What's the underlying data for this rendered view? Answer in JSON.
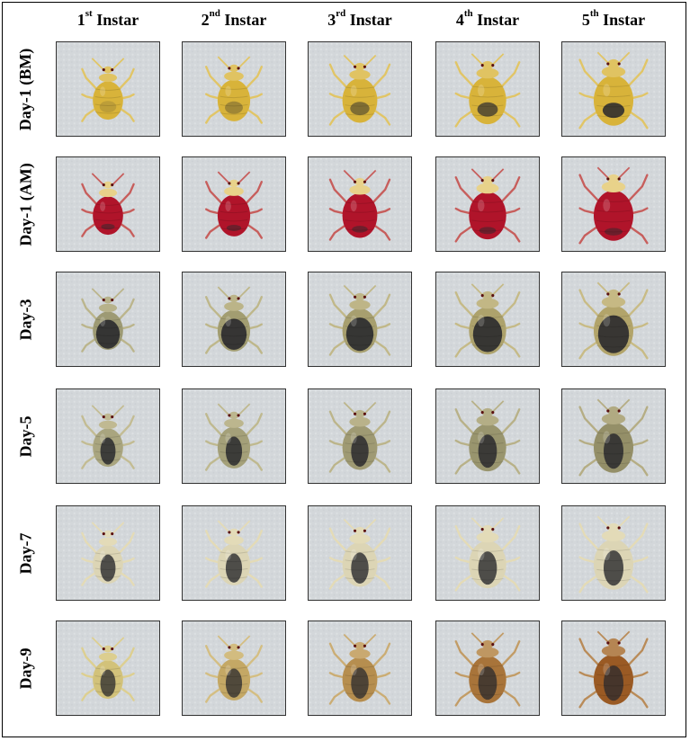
{
  "columns": [
    {
      "num": "1",
      "sup": "st",
      "word": "Instar"
    },
    {
      "num": "2",
      "sup": "nd",
      "word": "Instar"
    },
    {
      "num": "3",
      "sup": "rd",
      "word": "Instar"
    },
    {
      "num": "4",
      "sup": "th",
      "word": "Instar"
    },
    {
      "num": "5",
      "sup": "th",
      "word": "Instar"
    }
  ],
  "rows": [
    {
      "label": "Day-1 (BM)"
    },
    {
      "label": "Day-1 (AM)"
    },
    {
      "label": "Day-3"
    },
    {
      "label": "Day-5"
    },
    {
      "label": "Day-7"
    },
    {
      "label": "Day-9"
    }
  ],
  "colors": {
    "background": "#d6dadd",
    "day1bm_body": "#d8b33a",
    "day1am_blood": "#b0142a",
    "digested": "#2a2a2e",
    "day7_body": "#dcd5b5",
    "day9_late": "#9a5a24"
  }
}
